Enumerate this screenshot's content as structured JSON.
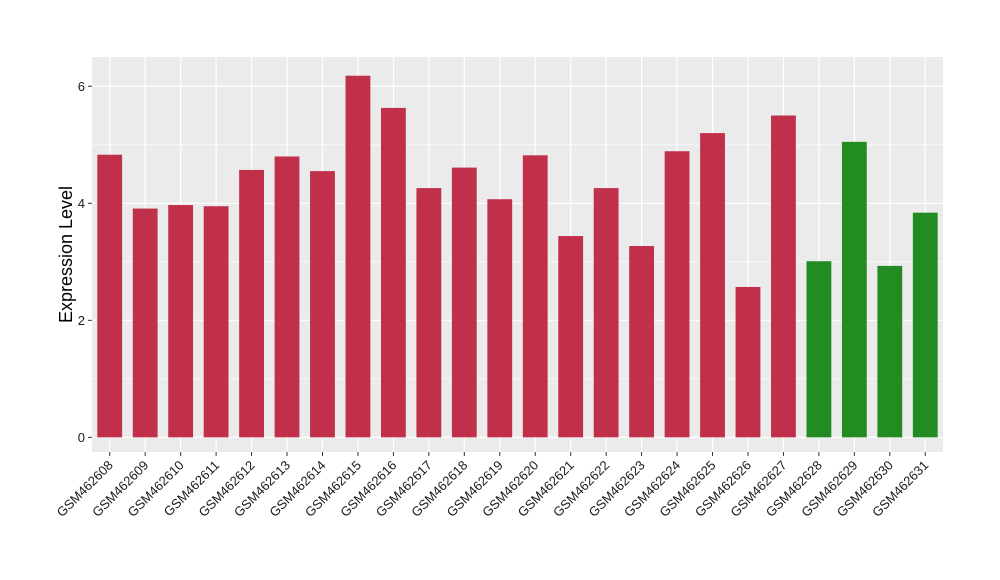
{
  "chart_data": {
    "type": "bar",
    "title": "",
    "xlabel": "",
    "ylabel": "Expression Level",
    "ylim": [
      -0.25,
      6.5
    ],
    "yticks": [
      0,
      2,
      4,
      6
    ],
    "grid": true,
    "legend": "none",
    "categories": [
      "GSM462608",
      "GSM462609",
      "GSM462610",
      "GSM462611",
      "GSM462612",
      "GSM462613",
      "GSM462614",
      "GSM462615",
      "GSM462616",
      "GSM462617",
      "GSM462618",
      "GSM462619",
      "GSM462620",
      "GSM462621",
      "GSM462622",
      "GSM462623",
      "GSM462624",
      "GSM462625",
      "GSM462626",
      "GSM462627",
      "GSM462628",
      "GSM462629",
      "GSM462630",
      "GSM462631"
    ],
    "values": [
      4.83,
      3.91,
      3.97,
      3.95,
      4.57,
      4.8,
      4.55,
      6.18,
      5.63,
      4.26,
      4.61,
      4.07,
      4.82,
      3.44,
      4.26,
      3.27,
      4.89,
      5.2,
      2.57,
      5.5,
      3.01,
      5.05,
      2.93,
      3.84
    ],
    "bar_colors": [
      "#c0304a",
      "#c0304a",
      "#c0304a",
      "#c0304a",
      "#c0304a",
      "#c0304a",
      "#c0304a",
      "#c0304a",
      "#c0304a",
      "#c0304a",
      "#c0304a",
      "#c0304a",
      "#c0304a",
      "#c0304a",
      "#c0304a",
      "#c0304a",
      "#c0304a",
      "#c0304a",
      "#c0304a",
      "#c0304a",
      "#228b22",
      "#228b22",
      "#228b22",
      "#228b22"
    ],
    "panel_background": "#ebebeb",
    "grid_color": "#ffffff"
  }
}
